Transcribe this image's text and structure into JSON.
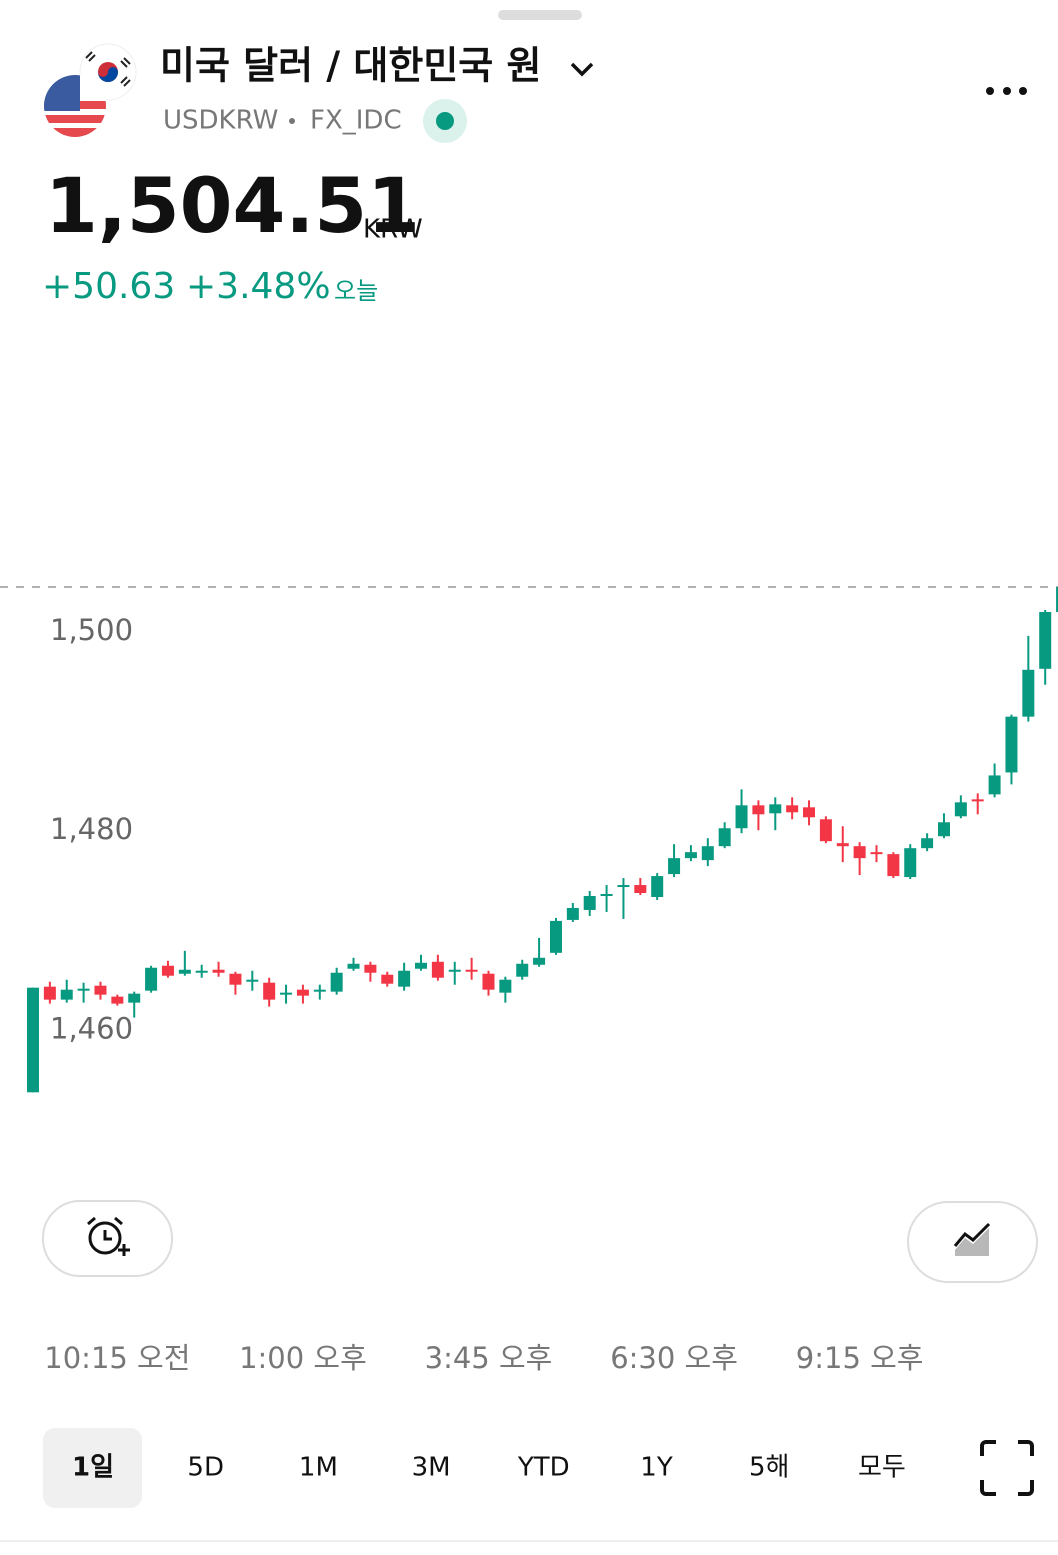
{
  "header": {
    "title": "미국 달러 / 대한민국 원",
    "symbol": "USDKRW",
    "exchange": "FX_IDC",
    "price": {
      "value": 1504.51,
      "label": "1,504.51"
    },
    "currency": "KRW",
    "change": "+50.63",
    "change_percent": "+3.48%",
    "period": "오늘"
  },
  "chart_data": {
    "type": "candlestick",
    "up_color": "#089981",
    "down_color": "#f23645",
    "ylim": [
      1445,
      1530
    ],
    "yticks": [
      {
        "value": 1460,
        "label": "1,460"
      },
      {
        "value": 1480,
        "label": "1,480"
      },
      {
        "value": 1500,
        "label": "1,500"
      }
    ],
    "categories": [
      null,
      null,
      null,
      null,
      null,
      "10:15 오전",
      null,
      null,
      null,
      null,
      null,
      null,
      null,
      null,
      null,
      null,
      "1:00 오후",
      null,
      null,
      null,
      null,
      null,
      null,
      null,
      null,
      null,
      null,
      "3:45 오후",
      null,
      null,
      null,
      null,
      null,
      null,
      null,
      null,
      null,
      null,
      "6:30 오후",
      null,
      null,
      null,
      null,
      null,
      null,
      null,
      null,
      null,
      null,
      "9:15 오후",
      null,
      null,
      null,
      null,
      null,
      null,
      null,
      null,
      null,
      null,
      null,
      null
    ],
    "open": [
      1453.8,
      1464.4,
      1463.1,
      1464.0,
      1464.5,
      1463.4,
      1462.8,
      1464.0,
      1466.5,
      1465.7,
      1465.9,
      1466.1,
      1465.7,
      1464.9,
      1464.8,
      1463.6,
      1464.1,
      1463.9,
      1463.9,
      1466.2,
      1466.6,
      1465.6,
      1464.4,
      1466.2,
      1466.9,
      1465.9,
      1466.1,
      1465.7,
      1463.8,
      1465.4,
      1466.6,
      1467.8,
      1471.1,
      1472.1,
      1473.5,
      1474.4,
      1474.6,
      1473.4,
      1475.7,
      1477.3,
      1477.1,
      1478.5,
      1480.3,
      1482.6,
      1481.8,
      1482.6,
      1482.4,
      1481.2,
      1478.8,
      1478.5,
      1477.9,
      1477.7,
      1475.4,
      1478.3,
      1479.5,
      1481.5,
      1483.2,
      1483.7,
      1485.9,
      1491.5,
      1496.3,
      1502.0
    ],
    "high": [
      1464.3,
      1464.9,
      1465.1,
      1464.8,
      1464.9,
      1463.6,
      1463.9,
      1466.5,
      1467.0,
      1468.0,
      1466.6,
      1466.9,
      1465.9,
      1466.0,
      1465.3,
      1464.6,
      1464.6,
      1464.6,
      1466.3,
      1467.3,
      1466.9,
      1465.9,
      1466.8,
      1467.6,
      1467.6,
      1466.9,
      1467.3,
      1466.0,
      1465.4,
      1467.1,
      1469.3,
      1471.3,
      1472.8,
      1474.0,
      1474.6,
      1475.3,
      1475.3,
      1475.8,
      1478.7,
      1478.6,
      1479.3,
      1480.9,
      1484.2,
      1483.1,
      1483.4,
      1483.4,
      1483.1,
      1481.5,
      1480.5,
      1478.9,
      1478.6,
      1477.9,
      1478.7,
      1479.8,
      1481.8,
      1483.6,
      1483.8,
      1486.8,
      1491.7,
      1499.6,
      1502.2,
      1504.5
    ],
    "low": [
      1453.8,
      1462.7,
      1462.8,
      1462.8,
      1463.1,
      1462.5,
      1461.3,
      1463.8,
      1465.3,
      1465.5,
      1465.3,
      1465.4,
      1463.6,
      1464.0,
      1462.4,
      1462.7,
      1462.7,
      1463.1,
      1463.6,
      1466.0,
      1464.9,
      1464.4,
      1464.0,
      1466.0,
      1465.0,
      1464.6,
      1465.1,
      1463.5,
      1462.8,
      1465.1,
      1466.4,
      1467.6,
      1470.9,
      1471.5,
      1471.9,
      1471.2,
      1473.6,
      1473.1,
      1475.4,
      1477.0,
      1476.5,
      1478.3,
      1479.8,
      1480.1,
      1480.1,
      1481.2,
      1480.6,
      1478.8,
      1476.9,
      1475.6,
      1476.9,
      1475.3,
      1475.2,
      1478.0,
      1479.3,
      1481.3,
      1481.7,
      1483.4,
      1484.7,
      1491.0,
      1494.7,
      1501.8
    ],
    "close": [
      1464.3,
      1463.1,
      1464.1,
      1464.2,
      1463.6,
      1462.7,
      1463.7,
      1466.3,
      1465.5,
      1466.1,
      1466.0,
      1465.8,
      1464.6,
      1465.1,
      1463.1,
      1463.8,
      1463.5,
      1464.1,
      1465.8,
      1466.7,
      1465.8,
      1464.7,
      1466.0,
      1466.8,
      1465.3,
      1466.1,
      1465.9,
      1464.1,
      1465.1,
      1466.7,
      1467.3,
      1471.0,
      1472.3,
      1473.5,
      1473.7,
      1474.6,
      1473.8,
      1475.5,
      1477.3,
      1477.9,
      1478.5,
      1480.3,
      1482.6,
      1481.7,
      1482.7,
      1481.9,
      1481.4,
      1479.0,
      1478.5,
      1477.3,
      1477.7,
      1475.5,
      1478.3,
      1479.3,
      1480.9,
      1482.9,
      1483.0,
      1485.6,
      1491.5,
      1496.2,
      1502.0,
      1504.5
    ]
  },
  "ranges": {
    "items": [
      "1일",
      "5D",
      "1M",
      "3M",
      "YTD",
      "1Y",
      "5해",
      "모두"
    ],
    "selected": 0
  }
}
